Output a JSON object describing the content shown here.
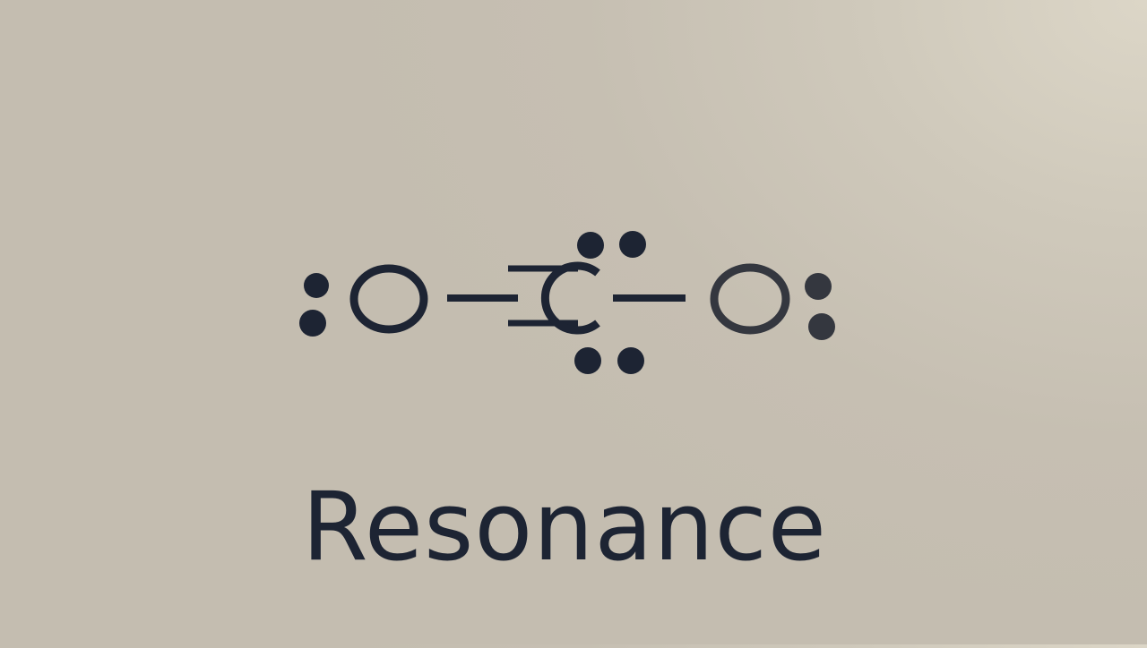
{
  "molecule": {
    "atoms": {
      "left_oxygen": "O",
      "carbon": "C",
      "right_oxygen": "O"
    }
  },
  "title": "Resonance",
  "colors": {
    "background": "#c6bfb2",
    "ink": "#1d2433",
    "ink_faded": "#34373f"
  }
}
